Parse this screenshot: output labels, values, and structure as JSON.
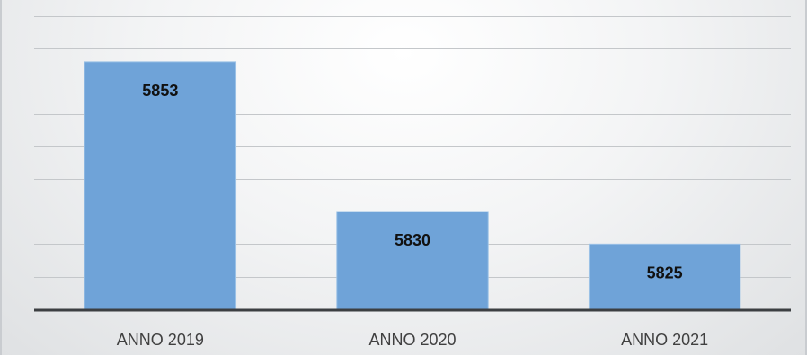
{
  "chart_data": {
    "type": "bar",
    "categories": [
      "ANNO 2019",
      "ANNO 2020",
      "ANNO 2021"
    ],
    "values": [
      5853,
      5830,
      5825
    ],
    "data_labels": [
      "5853",
      "5830",
      "5825"
    ],
    "title": "",
    "xlabel": "",
    "ylabel": "",
    "ylim": [
      5815,
      5860
    ],
    "grid": true,
    "grid_step": 5,
    "y_ticks_shown": false,
    "legend": "none",
    "colors": {
      "bar": "#6fa3d8",
      "bar_edge": "#9cc2e6",
      "grid": "#c4c7ca",
      "axis": "#3c3f42"
    }
  }
}
